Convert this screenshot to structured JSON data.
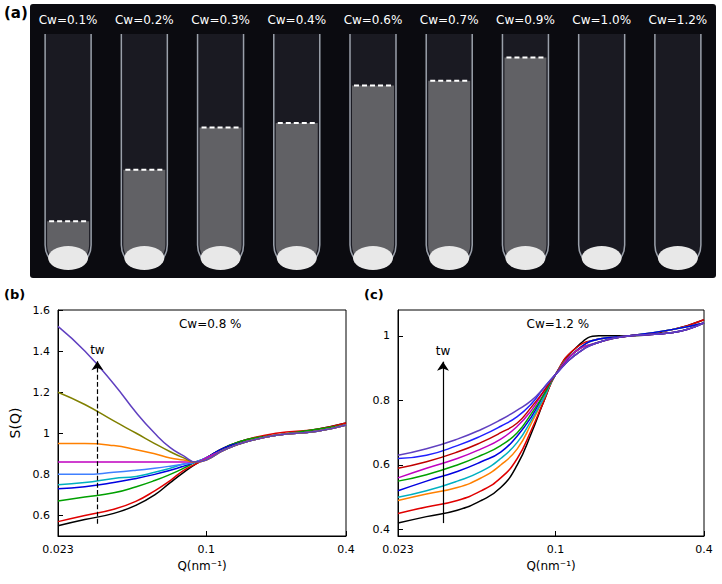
{
  "photo": {
    "panel": "(a)",
    "tubes": [
      {
        "label": "Cw=0.1%",
        "interface_height": 0.2
      },
      {
        "label": "Cw=0.2%",
        "interface_height": 0.42
      },
      {
        "label": "Cw=0.3%",
        "interface_height": 0.6
      },
      {
        "label": "Cw=0.4%",
        "interface_height": 0.62
      },
      {
        "label": "Cw=0.6%",
        "interface_height": 0.78
      },
      {
        "label": "Cw=0.7%",
        "interface_height": 0.8
      },
      {
        "label": "Cw=0.9%",
        "interface_height": 0.9
      },
      {
        "label": "Cw=1.0%",
        "interface_height": null
      },
      {
        "label": "Cw=1.2%",
        "interface_height": null
      }
    ]
  },
  "chart_data": [
    {
      "type": "line",
      "panel": "(b)",
      "title": "Cw=0.8 %",
      "x_label": "Q(nm⁻¹)",
      "y_label": "S(Q)",
      "log": "x",
      "grid": false,
      "xlim": [
        0.023,
        0.4
      ],
      "xticks": [
        0.023,
        0.1,
        0.4
      ],
      "ylim": [
        0.5,
        1.6
      ],
      "yticks": [
        0.6,
        0.8,
        1,
        1.2,
        1.4,
        1.6
      ],
      "x": [
        0.023,
        0.03,
        0.04,
        0.05,
        0.06,
        0.07,
        0.08,
        0.09,
        0.1,
        0.12,
        0.15,
        0.2,
        0.3,
        0.4
      ],
      "series": [
        {
          "color": "#000000",
          "values": [
            0.55,
            0.58,
            0.61,
            0.65,
            0.7,
            0.76,
            0.81,
            0.85,
            0.88,
            0.93,
            0.97,
            0.99,
            1.02,
            1.05
          ]
        },
        {
          "color": "#e00000",
          "values": [
            0.57,
            0.6,
            0.63,
            0.67,
            0.72,
            0.77,
            0.82,
            0.85,
            0.88,
            0.93,
            0.97,
            1.0,
            1.02,
            1.05
          ]
        },
        {
          "color": "#00a000",
          "values": [
            0.67,
            0.69,
            0.71,
            0.74,
            0.77,
            0.8,
            0.83,
            0.86,
            0.88,
            0.93,
            0.97,
            0.99,
            1.02,
            1.04
          ]
        },
        {
          "color": "#0000e0",
          "values": [
            0.73,
            0.74,
            0.76,
            0.78,
            0.8,
            0.82,
            0.84,
            0.86,
            0.88,
            0.93,
            0.96,
            0.99,
            1.01,
            1.04
          ]
        },
        {
          "color": "#00b0c0",
          "values": [
            0.75,
            0.76,
            0.78,
            0.79,
            0.81,
            0.83,
            0.85,
            0.86,
            0.88,
            0.92,
            0.96,
            0.99,
            1.01,
            1.04
          ]
        },
        {
          "color": "#4080ff",
          "values": [
            0.8,
            0.8,
            0.81,
            0.82,
            0.83,
            0.84,
            0.85,
            0.86,
            0.88,
            0.92,
            0.96,
            0.99,
            1.01,
            1.04
          ]
        },
        {
          "color": "#c000c0",
          "values": [
            0.86,
            0.86,
            0.86,
            0.86,
            0.86,
            0.86,
            0.86,
            0.86,
            0.88,
            0.92,
            0.96,
            0.99,
            1.01,
            1.04
          ]
        },
        {
          "color": "#ff8000",
          "values": [
            0.95,
            0.95,
            0.94,
            0.92,
            0.9,
            0.88,
            0.87,
            0.86,
            0.87,
            0.92,
            0.96,
            0.99,
            1.01,
            1.04
          ]
        },
        {
          "color": "#808000",
          "values": [
            1.2,
            1.14,
            1.06,
            1.0,
            0.95,
            0.91,
            0.88,
            0.86,
            0.87,
            0.92,
            0.96,
            0.99,
            1.01,
            1.04
          ]
        },
        {
          "color": "#6040c0",
          "values": [
            1.52,
            1.4,
            1.24,
            1.1,
            1.0,
            0.93,
            0.89,
            0.86,
            0.87,
            0.92,
            0.96,
            0.99,
            1.01,
            1.04
          ]
        }
      ],
      "annotations": [
        {
          "text": "tw",
          "x": 0.034,
          "y_from": 0.56,
          "y_to": 1.35,
          "line_style": "dashed"
        }
      ]
    },
    {
      "type": "line",
      "panel": "(c)",
      "title": "Cw=1.2 %",
      "x_label": "Q(nm⁻¹)",
      "log": "x",
      "grid": false,
      "xlim": [
        0.023,
        0.4
      ],
      "xticks": [
        0.023,
        0.1,
        0.4
      ],
      "ylim": [
        0.38,
        1.08
      ],
      "yticks": [
        0.4,
        0.6,
        0.8,
        1
      ],
      "x": [
        0.023,
        0.03,
        0.04,
        0.05,
        0.06,
        0.07,
        0.08,
        0.09,
        0.1,
        0.12,
        0.15,
        0.2,
        0.3,
        0.4
      ],
      "series": [
        {
          "color": "#000000",
          "values": [
            0.42,
            0.44,
            0.46,
            0.49,
            0.53,
            0.6,
            0.7,
            0.8,
            0.88,
            0.96,
            1.0,
            1.0,
            1.02,
            1.05
          ]
        },
        {
          "color": "#e00000",
          "values": [
            0.45,
            0.47,
            0.49,
            0.52,
            0.56,
            0.62,
            0.71,
            0.8,
            0.88,
            0.96,
            0.99,
            1.0,
            1.02,
            1.05
          ]
        },
        {
          "color": "#ff8000",
          "values": [
            0.49,
            0.51,
            0.53,
            0.56,
            0.6,
            0.65,
            0.73,
            0.81,
            0.88,
            0.95,
            0.99,
            1.0,
            1.02,
            1.04
          ]
        },
        {
          "color": "#00b0c0",
          "values": [
            0.5,
            0.52,
            0.55,
            0.58,
            0.62,
            0.67,
            0.74,
            0.81,
            0.88,
            0.95,
            0.99,
            1.0,
            1.02,
            1.04
          ]
        },
        {
          "color": "#0000e0",
          "values": [
            0.52,
            0.55,
            0.58,
            0.61,
            0.64,
            0.69,
            0.75,
            0.82,
            0.88,
            0.95,
            0.99,
            1.0,
            1.02,
            1.04
          ]
        },
        {
          "color": "#00a000",
          "values": [
            0.55,
            0.57,
            0.6,
            0.63,
            0.66,
            0.7,
            0.76,
            0.82,
            0.88,
            0.95,
            0.98,
            1.0,
            1.01,
            1.04
          ]
        },
        {
          "color": "#c000c0",
          "values": [
            0.56,
            0.59,
            0.62,
            0.65,
            0.68,
            0.72,
            0.77,
            0.83,
            0.88,
            0.95,
            0.98,
            1.0,
            1.01,
            1.04
          ]
        },
        {
          "color": "#c00000",
          "values": [
            0.59,
            0.61,
            0.64,
            0.67,
            0.7,
            0.73,
            0.78,
            0.83,
            0.88,
            0.94,
            0.98,
            1.0,
            1.01,
            1.04
          ]
        },
        {
          "color": "#2020ff",
          "values": [
            0.62,
            0.63,
            0.66,
            0.69,
            0.72,
            0.75,
            0.79,
            0.84,
            0.88,
            0.94,
            0.98,
            1.0,
            1.01,
            1.04
          ]
        },
        {
          "color": "#6040c0",
          "values": [
            0.63,
            0.65,
            0.68,
            0.71,
            0.74,
            0.77,
            0.8,
            0.84,
            0.88,
            0.94,
            0.98,
            1.0,
            1.01,
            1.04
          ]
        }
      ],
      "annotations": [
        {
          "text": "tw",
          "x": 0.035,
          "y_from": 0.42,
          "y_to": 0.92,
          "line_style": "solid"
        }
      ]
    }
  ]
}
